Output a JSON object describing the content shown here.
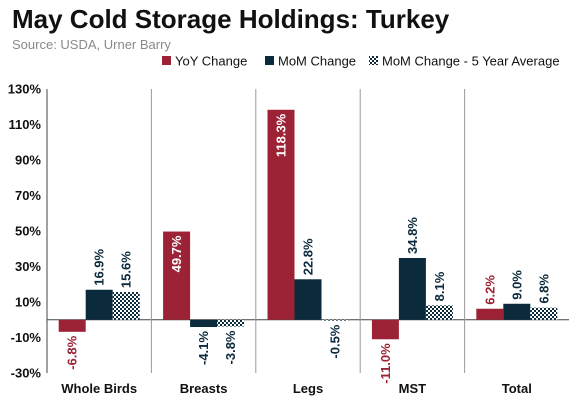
{
  "header": {
    "title": "May Cold Storage Holdings: Turkey",
    "source": "Source: USDA, Urner Barry"
  },
  "colors": {
    "yoy": "#9b2335",
    "mom": "#0b2a3c",
    "avg_pattern_dark": "#0b2a3c",
    "axis": "#444444",
    "separator": "#9a9a9a"
  },
  "chart_data": {
    "type": "bar",
    "title": "May Cold Storage Holdings: Turkey",
    "categories": [
      "Whole Birds",
      "Breasts",
      "Legs",
      "MST",
      "Total"
    ],
    "series": [
      {
        "name": "YoY Change",
        "values": [
          -6.8,
          49.7,
          118.3,
          -11.0,
          6.2
        ],
        "labels": [
          "-6.8%",
          "49.7%",
          "118.3%",
          "-11.0%",
          "6.2%"
        ]
      },
      {
        "name": "MoM Change",
        "values": [
          16.9,
          -4.1,
          22.8,
          34.8,
          9.0
        ],
        "labels": [
          "16.9%",
          "-4.1%",
          "22.8%",
          "34.8%",
          "9.0%"
        ]
      },
      {
        "name": "MoM Change - 5 Year Average",
        "values": [
          15.6,
          -3.8,
          -0.5,
          8.1,
          6.8
        ],
        "labels": [
          "15.6%",
          "-3.8%",
          "-0.5%",
          "8.1%",
          "6.8%"
        ]
      }
    ],
    "yticks": [
      "130%",
      "110%",
      "90%",
      "70%",
      "50%",
      "30%",
      "10%",
      "-10%",
      "-30%"
    ],
    "ylim": [
      -30,
      130
    ],
    "legend_position": "top-right",
    "grid": false
  }
}
